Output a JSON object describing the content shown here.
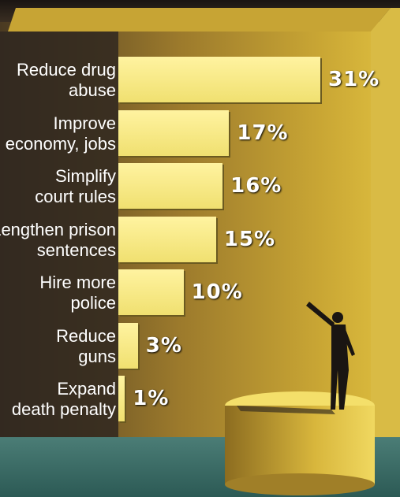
{
  "chart_data": {
    "type": "bar",
    "orientation": "horizontal",
    "categories": [
      "Reduce drug abuse",
      "Improve economy, jobs",
      "Simplify court rules",
      "Lengthen prison sentences",
      "Hire more police",
      "Reduce guns",
      "Expand death penalty"
    ],
    "label_lines": [
      [
        "Reduce drug",
        "abuse"
      ],
      [
        "Improve",
        "economy, jobs"
      ],
      [
        "Simplify",
        "court rules"
      ],
      [
        "Lengthen prison",
        "sentences"
      ],
      [
        "Hire more",
        "police"
      ],
      [
        "Reduce",
        "guns"
      ],
      [
        "Expand",
        "death penalty"
      ]
    ],
    "values": [
      31,
      17,
      16,
      15,
      10,
      3,
      1
    ],
    "value_labels": [
      "31%",
      "17%",
      "16%",
      "15%",
      "10%",
      "3%",
      "1%"
    ],
    "xlim": [
      0,
      31
    ],
    "grid": false,
    "legend": "none",
    "colors": {
      "bar": "#f3e47c",
      "background_dark": "#2a2420",
      "background_gold": "#b8952a",
      "floor": "#3d6b66"
    }
  }
}
